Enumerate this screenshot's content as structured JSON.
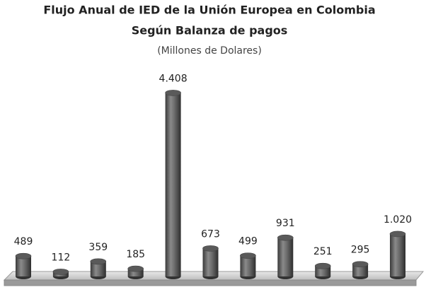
{
  "chart_data": {
    "type": "bar",
    "title": "Flujo Anual de IED de la Unión Europea en Colombia",
    "subtitle": "Según Balanza de pagos",
    "units_note": "(Millones de Dolares)",
    "values": [
      489,
      112,
      359,
      185,
      4408,
      673,
      499,
      931,
      251,
      295,
      1020
    ],
    "value_labels": [
      "489",
      "112",
      "359",
      "185",
      "4.408",
      "673",
      "499",
      "931",
      "251",
      "295",
      "1.020"
    ],
    "color": "#5a5a5a",
    "ylim": [
      0,
      4500
    ]
  }
}
